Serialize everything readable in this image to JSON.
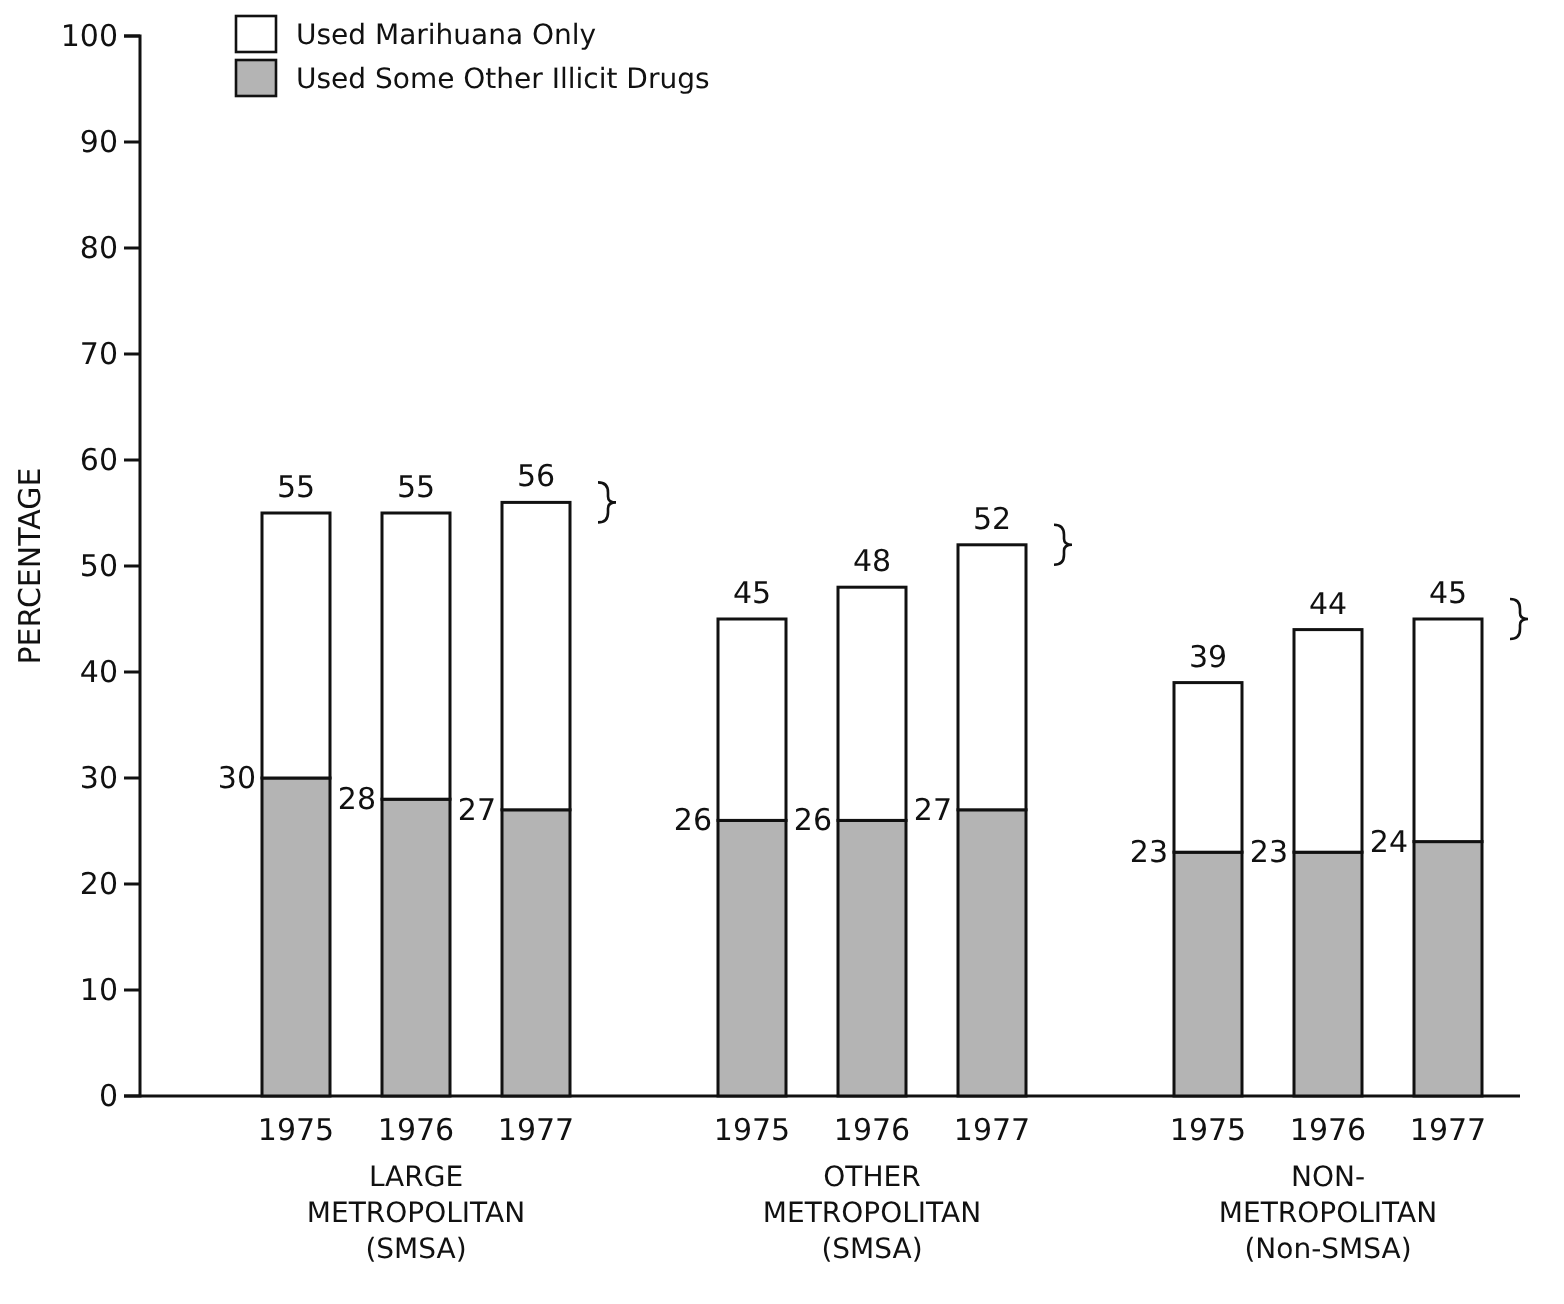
{
  "chart_data": {
    "type": "bar",
    "stacked": true,
    "ylabel": "PERCENTAGE",
    "categories": [
      "1975",
      "1976",
      "1977",
      "1975",
      "1976",
      "1977",
      "1975",
      "1976",
      "1977"
    ],
    "series": [
      {
        "name": "Used Some Other Illicit Drugs",
        "color": "#b4b4b4",
        "values": [
          30,
          28,
          27,
          26,
          26,
          27,
          23,
          23,
          24
        ],
        "value_labels": [
          "30",
          "28",
          "27",
          "26",
          "26",
          "27",
          "23",
          "23",
          "24"
        ]
      },
      {
        "name": "Used Marihuana Only",
        "color": "#ffffff",
        "values": [
          25,
          27,
          29,
          19,
          22,
          25,
          16,
          21,
          21
        ]
      }
    ],
    "totals": [
      "55",
      "55",
      "56",
      "45",
      "48",
      "52",
      "39",
      "44",
      "45"
    ],
    "annotations": [
      "LARGE\nMETROPOLITAN\n(SMSA)",
      "OTHER\nMETROPOLITAN\n(SMSA)",
      "NON-\nMETROPOLITAN\n(Non-SMSA)"
    ],
    "ylim": [
      0,
      100
    ],
    "yticks": [
      0,
      10,
      20,
      30,
      40,
      50,
      60,
      70,
      80,
      90,
      100
    ],
    "grid": false,
    "legend": "top left"
  }
}
